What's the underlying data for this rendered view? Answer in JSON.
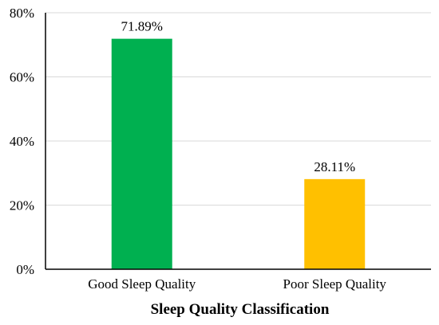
{
  "chart_data": {
    "type": "bar",
    "title": "",
    "xlabel": "Sleep Quality Classification",
    "ylabel": "",
    "categories": [
      "Good Sleep Quality",
      "Poor Sleep Quality"
    ],
    "values": [
      71.89,
      28.11
    ],
    "data_labels": [
      "71.89%",
      "28.11%"
    ],
    "colors": [
      "#00b050",
      "#ffc000"
    ],
    "ylim": [
      0,
      80
    ],
    "yticks": [
      0,
      20,
      40,
      60,
      80
    ],
    "ytick_labels": [
      "0%",
      "20%",
      "40%",
      "60%",
      "80%"
    ],
    "grid": true,
    "legend": "none"
  }
}
